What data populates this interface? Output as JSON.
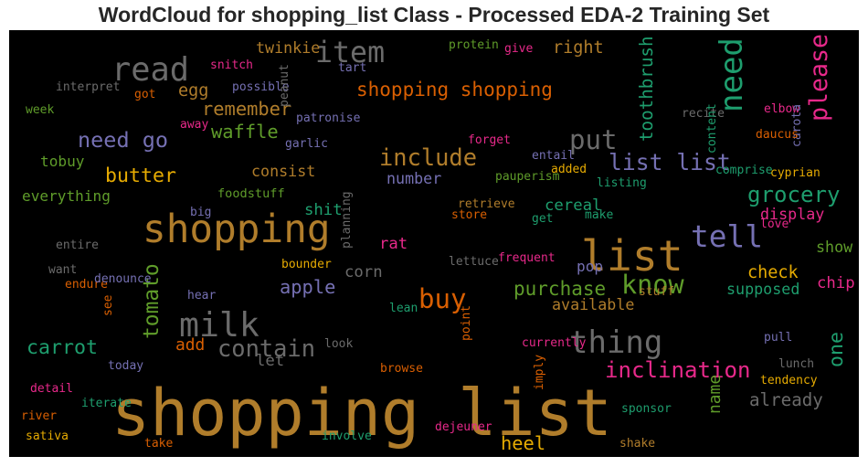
{
  "chart_data": {
    "type": "wordcloud",
    "title": "WordCloud for shopping_list Class - Processed EDA-2 Training Set",
    "background": "#000000",
    "palette": {
      "gold": "#b07d2b",
      "grey": "#6b6b6b",
      "green": "#5f9c2a",
      "teal": "#1e9e6e",
      "purple": "#7570b3",
      "orange": "#d95f02",
      "pink": "#e7298a",
      "amber": "#e6ab02"
    },
    "words": [
      {
        "text": "shopping list",
        "weight": 1.0,
        "color": "#b07d2b"
      },
      {
        "text": "list",
        "weight": 0.62,
        "color": "#b07d2b"
      },
      {
        "text": "shopping",
        "weight": 0.56,
        "color": "#b07d2b"
      },
      {
        "text": "milk",
        "weight": 0.46,
        "color": "#6b6b6b"
      },
      {
        "text": "read",
        "weight": 0.44,
        "color": "#6b6b6b"
      },
      {
        "text": "thing",
        "weight": 0.42,
        "color": "#6b6b6b"
      },
      {
        "text": "need",
        "weight": 0.42,
        "color": "#1e9e6e"
      },
      {
        "text": "tell",
        "weight": 0.4,
        "color": "#7570b3"
      },
      {
        "text": "item",
        "weight": 0.38,
        "color": "#6b6b6b"
      },
      {
        "text": "buy",
        "weight": 0.34,
        "color": "#d95f02"
      },
      {
        "text": "put",
        "weight": 0.34,
        "color": "#6b6b6b"
      },
      {
        "text": "know",
        "weight": 0.33,
        "color": "#5f9c2a"
      },
      {
        "text": "please",
        "weight": 0.3,
        "color": "#e7298a"
      },
      {
        "text": "contain",
        "weight": 0.28,
        "color": "#6b6b6b"
      },
      {
        "text": "include",
        "weight": 0.28,
        "color": "#b07d2b"
      },
      {
        "text": "list list",
        "weight": 0.27,
        "color": "#7570b3"
      },
      {
        "text": "grocery",
        "weight": 0.26,
        "color": "#1e9e6e"
      },
      {
        "text": "inclination",
        "weight": 0.26,
        "color": "#e7298a"
      },
      {
        "text": "need go",
        "weight": 0.25,
        "color": "#7570b3"
      },
      {
        "text": "tomato",
        "weight": 0.24,
        "color": "#5f9c2a"
      },
      {
        "text": "carrot",
        "weight": 0.22,
        "color": "#1e9e6e"
      },
      {
        "text": "butter",
        "weight": 0.22,
        "color": "#e6ab02"
      },
      {
        "text": "one",
        "weight": 0.22,
        "color": "#1e9e6e"
      },
      {
        "text": "shopping shopping",
        "weight": 0.21,
        "color": "#d95f02"
      },
      {
        "text": "purchase",
        "weight": 0.21,
        "color": "#5f9c2a"
      },
      {
        "text": "apple",
        "weight": 0.2,
        "color": "#7570b3"
      },
      {
        "text": "remember",
        "weight": 0.2,
        "color": "#b07d2b"
      },
      {
        "text": "waffle",
        "weight": 0.2,
        "color": "#5f9c2a"
      },
      {
        "text": "heel",
        "weight": 0.2,
        "color": "#e6ab02"
      },
      {
        "text": "toothbrush",
        "weight": 0.18,
        "color": "#1e9e6e"
      },
      {
        "text": "already",
        "weight": 0.18,
        "color": "#6b6b6b"
      },
      {
        "text": "check",
        "weight": 0.17,
        "color": "#e6ab02"
      },
      {
        "text": "right",
        "weight": 0.17,
        "color": "#b07d2b"
      },
      {
        "text": "egg",
        "weight": 0.17,
        "color": "#b07d2b"
      },
      {
        "text": "add",
        "weight": 0.16,
        "color": "#d95f02"
      },
      {
        "text": "name",
        "weight": 0.16,
        "color": "#5f9c2a"
      },
      {
        "text": "corn",
        "weight": 0.15,
        "color": "#6b6b6b"
      },
      {
        "text": "let",
        "weight": 0.15,
        "color": "#6b6b6b"
      },
      {
        "text": "rat",
        "weight": 0.15,
        "color": "#e7298a"
      },
      {
        "text": "shit",
        "weight": 0.15,
        "color": "#1e9e6e"
      },
      {
        "text": "chip",
        "weight": 0.15,
        "color": "#e7298a"
      },
      {
        "text": "cereal",
        "weight": 0.15,
        "color": "#1e9e6e"
      },
      {
        "text": "consist",
        "weight": 0.14,
        "color": "#b07d2b"
      },
      {
        "text": "number",
        "weight": 0.14,
        "color": "#7570b3"
      },
      {
        "text": "available",
        "weight": 0.14,
        "color": "#b07d2b"
      },
      {
        "text": "supposed",
        "weight": 0.14,
        "color": "#1e9e6e"
      },
      {
        "text": "twinkie",
        "weight": 0.14,
        "color": "#b07d2b"
      },
      {
        "text": "display",
        "weight": 0.14,
        "color": "#e7298a"
      },
      {
        "text": "show",
        "weight": 0.14,
        "color": "#5f9c2a"
      },
      {
        "text": "everything",
        "weight": 0.13,
        "color": "#5f9c2a"
      },
      {
        "text": "tobuy",
        "weight": 0.13,
        "color": "#5f9c2a"
      },
      {
        "text": "pop",
        "weight": 0.13,
        "color": "#7570b3"
      },
      {
        "text": "foodstuff",
        "weight": 0.09,
        "color": "#5f9c2a"
      },
      {
        "text": "protein",
        "weight": 0.08,
        "color": "#5f9c2a"
      },
      {
        "text": "give",
        "weight": 0.08,
        "color": "#e7298a"
      },
      {
        "text": "tart",
        "weight": 0.08,
        "color": "#7570b3"
      },
      {
        "text": "snitch",
        "weight": 0.08,
        "color": "#e7298a"
      },
      {
        "text": "interpret",
        "weight": 0.08,
        "color": "#6b6b6b"
      },
      {
        "text": "got",
        "weight": 0.08,
        "color": "#d95f02"
      },
      {
        "text": "possible",
        "weight": 0.08,
        "color": "#7570b3"
      },
      {
        "text": "peanut",
        "weight": 0.08,
        "color": "#6b6b6b"
      },
      {
        "text": "patronise",
        "weight": 0.08,
        "color": "#7570b3"
      },
      {
        "text": "week",
        "weight": 0.08,
        "color": "#5f9c2a"
      },
      {
        "text": "away",
        "weight": 0.08,
        "color": "#e7298a"
      },
      {
        "text": "garlic",
        "weight": 0.08,
        "color": "#7570b3"
      },
      {
        "text": "forget",
        "weight": 0.08,
        "color": "#e7298a"
      },
      {
        "text": "entail",
        "weight": 0.08,
        "color": "#7570b3"
      },
      {
        "text": "recite",
        "weight": 0.08,
        "color": "#6b6b6b"
      },
      {
        "text": "content",
        "weight": 0.08,
        "color": "#1e9e6e"
      },
      {
        "text": "elbow",
        "weight": 0.08,
        "color": "#e7298a"
      },
      {
        "text": "carota",
        "weight": 0.08,
        "color": "#7570b3"
      },
      {
        "text": "daucus",
        "weight": 0.08,
        "color": "#d95f02"
      },
      {
        "text": "pauperism",
        "weight": 0.08,
        "color": "#5f9c2a"
      },
      {
        "text": "added",
        "weight": 0.08,
        "color": "#e6ab02"
      },
      {
        "text": "listing",
        "weight": 0.08,
        "color": "#1e9e6e"
      },
      {
        "text": "comprise",
        "weight": 0.08,
        "color": "#1e9e6e"
      },
      {
        "text": "cyprian",
        "weight": 0.08,
        "color": "#e6ab02"
      },
      {
        "text": "big",
        "weight": 0.08,
        "color": "#7570b3"
      },
      {
        "text": "planning",
        "weight": 0.08,
        "color": "#6b6b6b"
      },
      {
        "text": "retrieve",
        "weight": 0.08,
        "color": "#b07d2b"
      },
      {
        "text": "store",
        "weight": 0.08,
        "color": "#d95f02"
      },
      {
        "text": "get",
        "weight": 0.08,
        "color": "#1e9e6e"
      },
      {
        "text": "make",
        "weight": 0.08,
        "color": "#1e9e6e"
      },
      {
        "text": "love",
        "weight": 0.08,
        "color": "#e7298a"
      },
      {
        "text": "entire",
        "weight": 0.08,
        "color": "#6b6b6b"
      },
      {
        "text": "want",
        "weight": 0.08,
        "color": "#6b6b6b"
      },
      {
        "text": "endure",
        "weight": 0.08,
        "color": "#d95f02"
      },
      {
        "text": "denounce",
        "weight": 0.08,
        "color": "#7570b3"
      },
      {
        "text": "bounder",
        "weight": 0.08,
        "color": "#e6ab02"
      },
      {
        "text": "lettuce",
        "weight": 0.08,
        "color": "#6b6b6b"
      },
      {
        "text": "frequent",
        "weight": 0.08,
        "color": "#e7298a"
      },
      {
        "text": "stuff",
        "weight": 0.08,
        "color": "#b07d2b"
      },
      {
        "text": "hear",
        "weight": 0.08,
        "color": "#7570b3"
      },
      {
        "text": "see",
        "weight": 0.08,
        "color": "#d95f02"
      },
      {
        "text": "lean",
        "weight": 0.08,
        "color": "#1e9e6e"
      },
      {
        "text": "point",
        "weight": 0.08,
        "color": "#d95f02"
      },
      {
        "text": "look",
        "weight": 0.08,
        "color": "#6b6b6b"
      },
      {
        "text": "currently",
        "weight": 0.08,
        "color": "#e7298a"
      },
      {
        "text": "pull",
        "weight": 0.08,
        "color": "#7570b3"
      },
      {
        "text": "lunch",
        "weight": 0.08,
        "color": "#6b6b6b"
      },
      {
        "text": "today",
        "weight": 0.08,
        "color": "#7570b3"
      },
      {
        "text": "browse",
        "weight": 0.08,
        "color": "#d95f02"
      },
      {
        "text": "imply",
        "weight": 0.08,
        "color": "#d95f02"
      },
      {
        "text": "tendency",
        "weight": 0.08,
        "color": "#e6ab02"
      },
      {
        "text": "detail",
        "weight": 0.08,
        "color": "#e7298a"
      },
      {
        "text": "iterate",
        "weight": 0.08,
        "color": "#1e9e6e"
      },
      {
        "text": "sponsor",
        "weight": 0.08,
        "color": "#1e9e6e"
      },
      {
        "text": "river",
        "weight": 0.08,
        "color": "#d95f02"
      },
      {
        "text": "sativa",
        "weight": 0.08,
        "color": "#e6ab02"
      },
      {
        "text": "involve",
        "weight": 0.08,
        "color": "#1e9e6e"
      },
      {
        "text": "dejeuner",
        "weight": 0.08,
        "color": "#e7298a"
      },
      {
        "text": "take",
        "weight": 0.08,
        "color": "#d95f02"
      },
      {
        "text": "shake",
        "weight": 0.08,
        "color": "#b07d2b"
      }
    ]
  }
}
